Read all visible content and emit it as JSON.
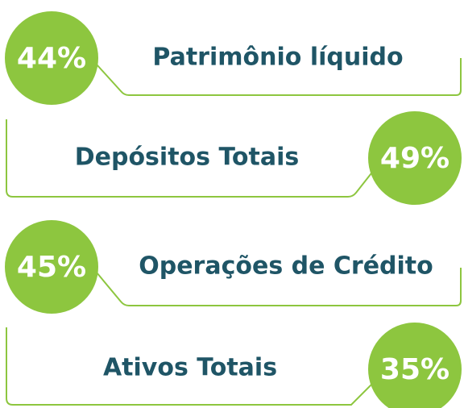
{
  "items": [
    {
      "label": "Patrimônio líquido",
      "percent": "44%"
    },
    {
      "label": "Depósitos Totais",
      "percent": "49%"
    },
    {
      "label": "Operações de Crédito",
      "percent": "45%"
    },
    {
      "label": "Ativos Totais",
      "percent": "35%"
    }
  ]
}
